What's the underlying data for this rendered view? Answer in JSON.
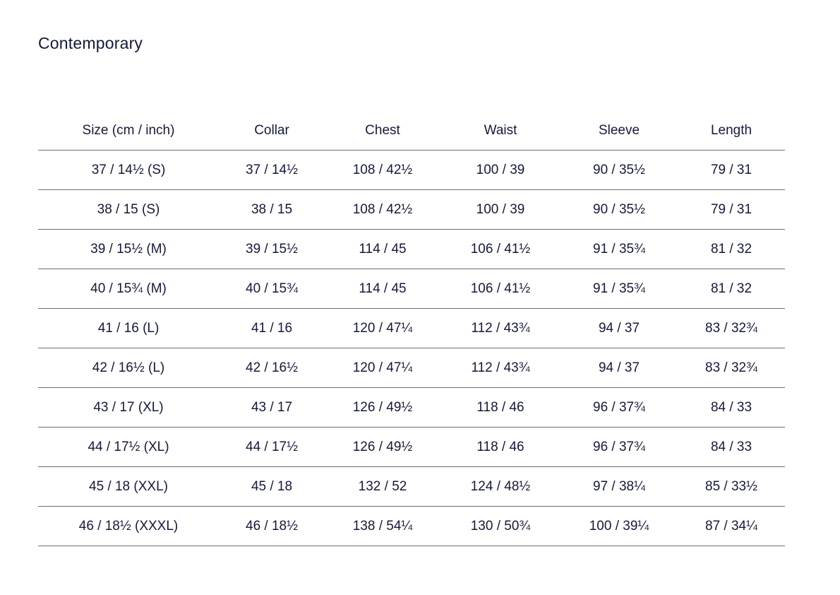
{
  "title": "Contemporary",
  "table": {
    "headers": [
      "Size (cm / inch)",
      "Collar",
      "Chest",
      "Waist",
      "Sleeve",
      "Length"
    ],
    "rows": [
      [
        "37 / 14½ (S)",
        "37 / 14½",
        "108 / 42½",
        "100 / 39",
        "90 / 35½",
        "79 / 31"
      ],
      [
        "38 / 15 (S)",
        "38 / 15",
        "108 / 42½",
        "100 / 39",
        "90 / 35½",
        "79 / 31"
      ],
      [
        "39 / 15½ (M)",
        "39 / 15½",
        "114 / 45",
        "106 / 41½",
        "91 / 35¾",
        "81 / 32"
      ],
      [
        "40 / 15¾ (M)",
        "40 / 15¾",
        "114 / 45",
        "106 / 41½",
        "91 / 35¾",
        "81 / 32"
      ],
      [
        "41 / 16 (L)",
        "41 / 16",
        "120 / 47¼",
        "112 / 43¾",
        "94 / 37",
        "83 / 32¾"
      ],
      [
        "42 / 16½ (L)",
        "42 / 16½",
        "120 / 47¼",
        "112 / 43¾",
        "94 / 37",
        "83 / 32¾"
      ],
      [
        "43 / 17 (XL)",
        "43 / 17",
        "126 / 49½",
        "118 / 46",
        "96 / 37¾",
        "84 / 33"
      ],
      [
        "44 / 17½ (XL)",
        "44 / 17½",
        "126 / 49½",
        "118 / 46",
        "96 / 37¾",
        "84 / 33"
      ],
      [
        "45 / 18 (XXL)",
        "45 / 18",
        "132 / 52",
        "124 / 48½",
        "97 / 38¼",
        "85 / 33½"
      ],
      [
        "46 / 18½ (XXXL)",
        "46 / 18½",
        "138 / 54¼",
        "130 / 50¾",
        "100 / 39¼",
        "87 / 34¼"
      ]
    ]
  },
  "colors": {
    "text": "#15193a",
    "rule": "#6b6e78",
    "background": "#ffffff"
  }
}
